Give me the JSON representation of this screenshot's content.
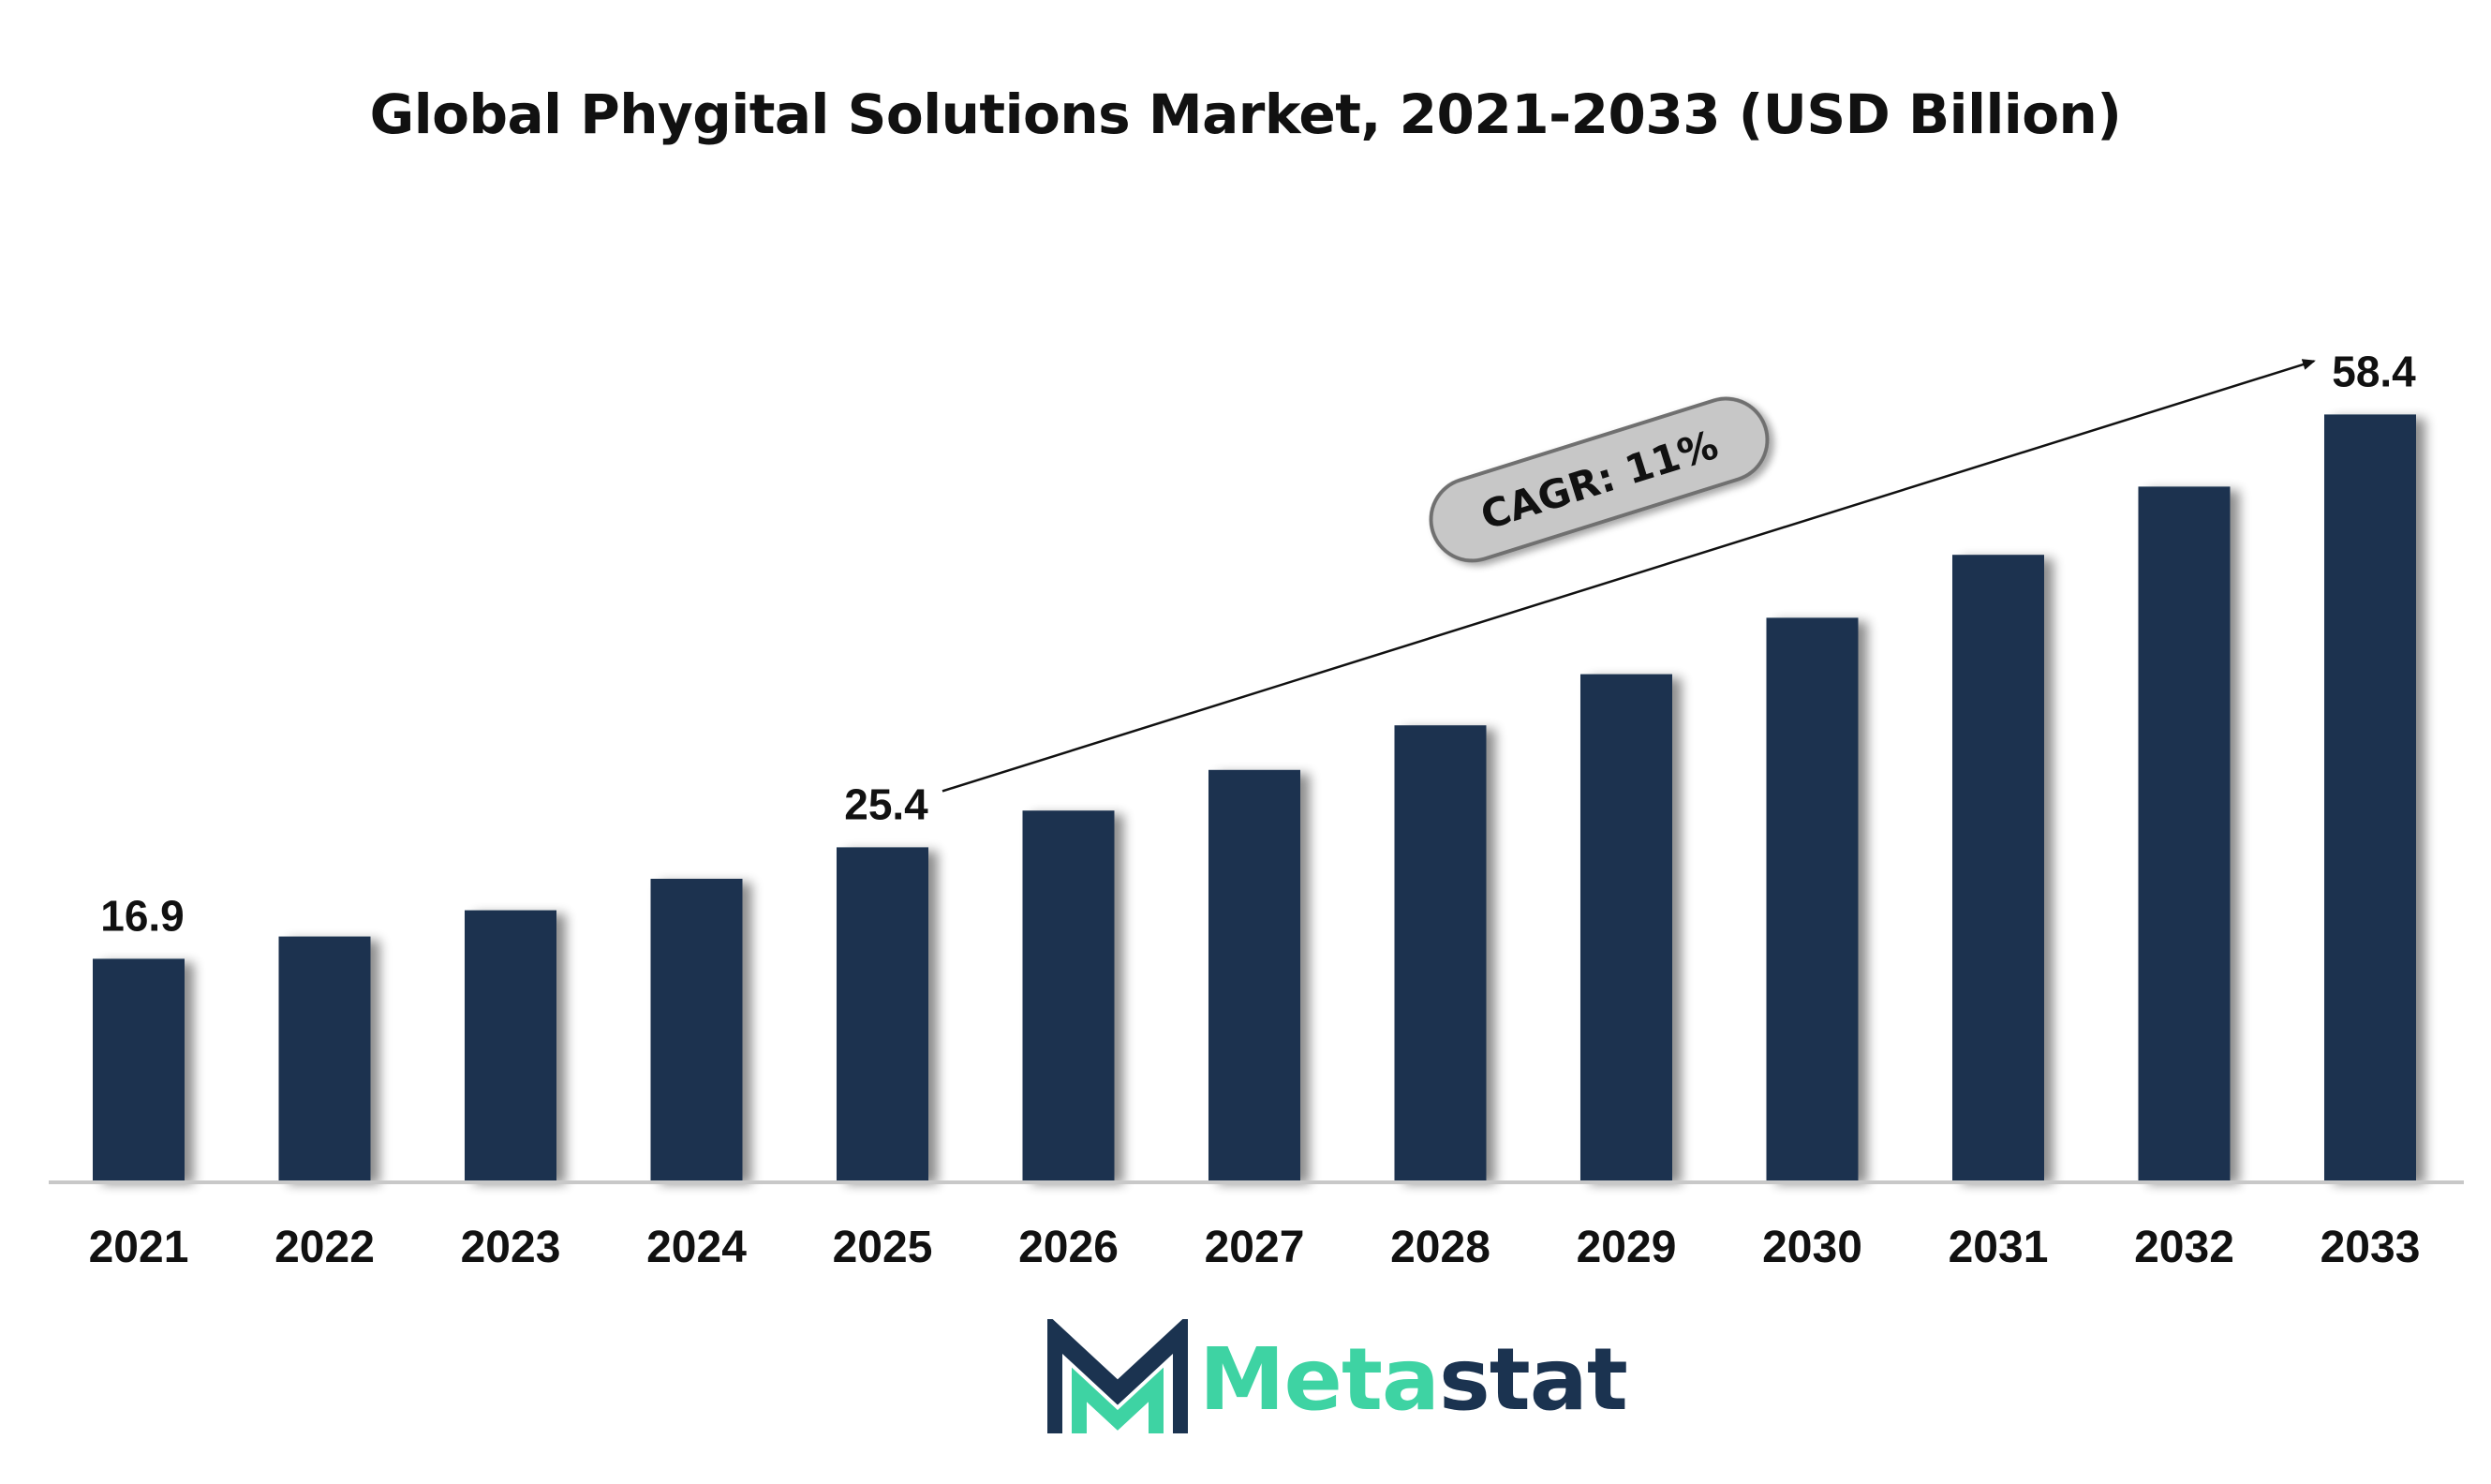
{
  "chart_data": {
    "type": "bar",
    "title": "Global Phygital Solutions Market, 2021-2033 (USD Billion)",
    "categories": [
      "2021",
      "2022",
      "2023",
      "2024",
      "2025",
      "2026",
      "2027",
      "2028",
      "2029",
      "2030",
      "2031",
      "2032",
      "2033"
    ],
    "values": [
      16.9,
      18.6,
      20.6,
      23.0,
      25.4,
      28.2,
      31.3,
      34.7,
      38.6,
      42.9,
      47.7,
      52.9,
      58.4
    ],
    "data_labels": {
      "2021": "16.9",
      "2025": "25.4",
      "2033": "58.4"
    },
    "ylim": [
      0,
      60
    ],
    "grid": false,
    "legend": "none",
    "bar_color": "#1b3350",
    "annotation": {
      "text": "CAGR: 11%",
      "from_category": "2025",
      "to_category": "2033"
    }
  },
  "logo": {
    "text_part1": "Meta",
    "text_part2": "stat",
    "accent_color": "#3ed3a3",
    "dark_color": "#1b3350"
  }
}
